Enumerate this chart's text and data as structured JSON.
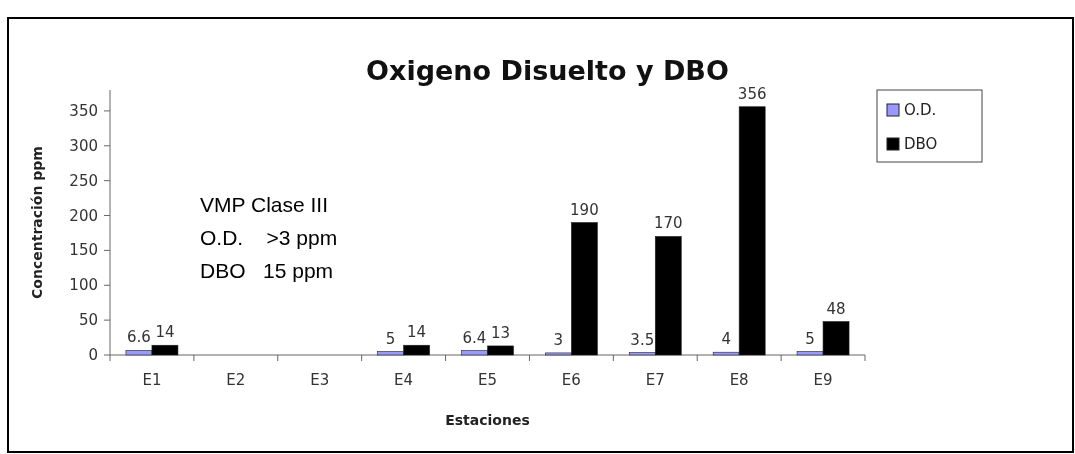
{
  "chart_data": {
    "type": "bar",
    "title": "Oxigeno Disuelto y DBO",
    "xlabel": "Estaciones",
    "ylabel": "Concentración ppm",
    "categories": [
      "E1",
      "E2",
      "E3",
      "E4",
      "E5",
      "E6",
      "E7",
      "E8",
      "E9"
    ],
    "series": [
      {
        "name": "O.D.",
        "color": "#9999ff",
        "values": [
          6.6,
          null,
          null,
          5,
          6.4,
          3,
          3.5,
          4,
          5
        ]
      },
      {
        "name": "DBO",
        "color": "#000000",
        "values": [
          14,
          null,
          null,
          14,
          13,
          190,
          170,
          356,
          48
        ]
      }
    ],
    "ylim": [
      0,
      380
    ],
    "yticks": [
      0,
      50,
      100,
      150,
      200,
      250,
      300,
      350
    ],
    "data_labels": true,
    "legend": "top right",
    "grid": false,
    "annotations": [
      "VMP Clase III",
      "O.D.    >3 ppm",
      "DBO   15 ppm"
    ]
  }
}
